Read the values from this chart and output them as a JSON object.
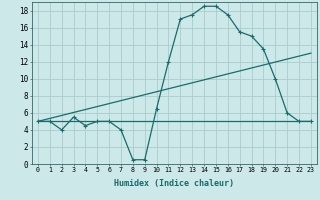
{
  "background_color": "#cce8e8",
  "grid_color": "#aacccc",
  "line_color": "#1a6b6b",
  "xlabel": "Humidex (Indice chaleur)",
  "xlim": [
    -0.5,
    23.5
  ],
  "ylim": [
    0,
    19
  ],
  "xticks": [
    0,
    1,
    2,
    3,
    4,
    5,
    6,
    7,
    8,
    9,
    10,
    11,
    12,
    13,
    14,
    15,
    16,
    17,
    18,
    19,
    20,
    21,
    22,
    23
  ],
  "yticks": [
    0,
    2,
    4,
    6,
    8,
    10,
    12,
    14,
    16,
    18
  ],
  "series0": {
    "x": [
      0,
      1,
      2,
      3,
      4,
      5,
      6,
      7,
      8,
      9,
      10,
      11,
      12,
      13,
      14,
      15,
      16,
      17,
      18,
      19,
      20,
      21,
      22,
      23
    ],
    "y": [
      5,
      5,
      4,
      5.5,
      4.5,
      5,
      5,
      4,
      0.5,
      0.5,
      6.5,
      12,
      17,
      17.5,
      18.5,
      18.5,
      17.5,
      15.5,
      15,
      13.5,
      10,
      6,
      5,
      5
    ]
  },
  "series1": {
    "x": [
      0,
      23
    ],
    "y": [
      5,
      5
    ]
  },
  "series2": {
    "x": [
      0,
      23
    ],
    "y": [
      5,
      13
    ]
  },
  "xlabel_fontsize": 6.0,
  "tick_fontsize": 4.8,
  "ytick_fontsize": 5.5
}
